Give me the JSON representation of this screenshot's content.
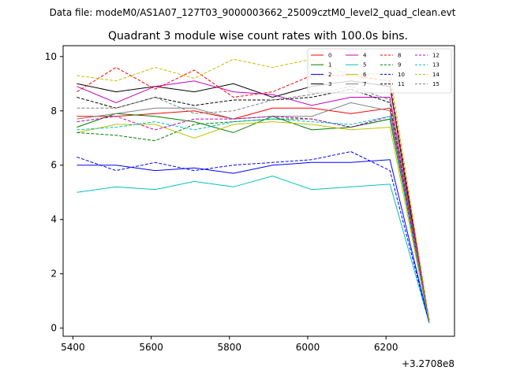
{
  "chart_data": {
    "type": "line",
    "suptitle": "Data file: modeM0/AS1A07_127T03_9000003662_25009cztM0_level2_quad_clean.evt",
    "title": "Quadrant 3 module wise count rates with 100.0s bins.",
    "xlabel": "",
    "ylabel": "",
    "x_offset_label": "+3.2708e8",
    "x": [
      5410,
      5510,
      5610,
      5710,
      5810,
      5910,
      6010,
      6110,
      6210,
      6310
    ],
    "xlim": [
      5375,
      6375
    ],
    "ylim": [
      -0.3,
      10.4
    ],
    "xticks": [
      5400,
      5600,
      5800,
      6000,
      6200
    ],
    "yticks": [
      0,
      2,
      4,
      6,
      8,
      10
    ],
    "legend_position": "top-right",
    "series": [
      {
        "name": "0",
        "color": "#ff0000",
        "dash": "solid",
        "values": [
          7.8,
          7.8,
          7.9,
          8.0,
          7.7,
          8.1,
          8.1,
          7.9,
          8.1,
          0.3
        ]
      },
      {
        "name": "1",
        "color": "#008000",
        "dash": "solid",
        "values": [
          7.4,
          7.9,
          7.8,
          7.6,
          7.2,
          7.8,
          7.3,
          7.4,
          7.7,
          0.3
        ]
      },
      {
        "name": "2",
        "color": "#0000ff",
        "dash": "solid",
        "values": [
          6.0,
          6.0,
          5.8,
          5.9,
          5.7,
          6.0,
          6.1,
          6.1,
          6.2,
          0.2
        ]
      },
      {
        "name": "3",
        "color": "#000000",
        "dash": "solid",
        "values": [
          9.0,
          8.7,
          8.9,
          8.7,
          9.0,
          8.5,
          8.9,
          9.1,
          8.9,
          0.2
        ]
      },
      {
        "name": "4",
        "color": "#c000c0",
        "dash": "solid",
        "values": [
          8.9,
          8.3,
          8.9,
          9.1,
          8.7,
          8.6,
          8.2,
          8.5,
          8.5,
          0.3
        ]
      },
      {
        "name": "5",
        "color": "#00c0c0",
        "dash": "solid",
        "values": [
          5.0,
          5.2,
          5.1,
          5.4,
          5.2,
          5.6,
          5.1,
          5.2,
          5.3,
          0.2
        ]
      },
      {
        "name": "6",
        "color": "#c0c000",
        "dash": "solid",
        "values": [
          7.2,
          7.5,
          7.5,
          7.0,
          7.5,
          7.6,
          7.5,
          7.3,
          7.4,
          0.2
        ]
      },
      {
        "name": "7",
        "color": "#808080",
        "dash": "solid",
        "values": [
          7.7,
          7.9,
          8.1,
          8.1,
          7.7,
          7.8,
          7.8,
          8.3,
          8.0,
          0.2
        ]
      },
      {
        "name": "8",
        "color": "#ff0000",
        "dash": "dashed",
        "values": [
          8.7,
          9.6,
          8.8,
          9.5,
          8.5,
          8.7,
          9.3,
          9.3,
          9.1,
          0.3
        ]
      },
      {
        "name": "9",
        "color": "#008000",
        "dash": "dashed",
        "values": [
          7.2,
          7.1,
          6.9,
          7.5,
          7.6,
          7.7,
          7.7,
          7.4,
          7.7,
          0.3
        ]
      },
      {
        "name": "10",
        "color": "#0000ff",
        "dash": "dashed",
        "values": [
          6.3,
          5.8,
          6.1,
          5.8,
          6.0,
          6.1,
          6.2,
          6.5,
          5.8,
          0.2
        ]
      },
      {
        "name": "11",
        "color": "#000000",
        "dash": "dashed",
        "values": [
          8.5,
          8.1,
          8.5,
          8.2,
          8.4,
          8.4,
          8.5,
          8.8,
          8.3,
          0.2
        ]
      },
      {
        "name": "12",
        "color": "#c000c0",
        "dash": "dashed",
        "values": [
          7.6,
          7.8,
          7.3,
          7.7,
          7.7,
          7.8,
          7.7,
          7.4,
          7.8,
          0.3
        ]
      },
      {
        "name": "13",
        "color": "#00c0c0",
        "dash": "dashed",
        "values": [
          7.3,
          7.4,
          7.6,
          7.3,
          7.6,
          7.7,
          7.6,
          7.5,
          7.8,
          0.2
        ]
      },
      {
        "name": "14",
        "color": "#c0c000",
        "dash": "dashed",
        "values": [
          9.3,
          9.1,
          9.6,
          9.2,
          9.9,
          9.6,
          9.9,
          9.3,
          9.4,
          0.3
        ]
      },
      {
        "name": "15",
        "color": "#808080",
        "dash": "dashed",
        "values": [
          8.1,
          8.1,
          8.5,
          7.9,
          8.0,
          8.4,
          8.6,
          8.9,
          8.4,
          0.2
        ]
      }
    ]
  }
}
